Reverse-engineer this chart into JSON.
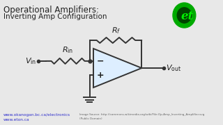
{
  "bg_color": "#e8e8e8",
  "title_line1": "Operational Amplifiers:",
  "title_line2": "Inverting Amp Configuration",
  "title_color": "#222222",
  "title_fontsize": 8.5,
  "subtitle_fontsize": 7.5,
  "circuit_color": "#333333",
  "label_color": "#222222",
  "link_color": "#3333cc",
  "link1": "www.okanogan.bc.ca/electronics",
  "link2": "www.eton.ca",
  "small_text": "Image Source: http://commons.wikimedia.org/wiki/File:Op-Amp_Inverting_Amplifier.svg",
  "small_text2": "(Public Domain)",
  "logo_green": "#00aa00",
  "logo_dark": "#004400",
  "logo_text_color": "#00ee00"
}
